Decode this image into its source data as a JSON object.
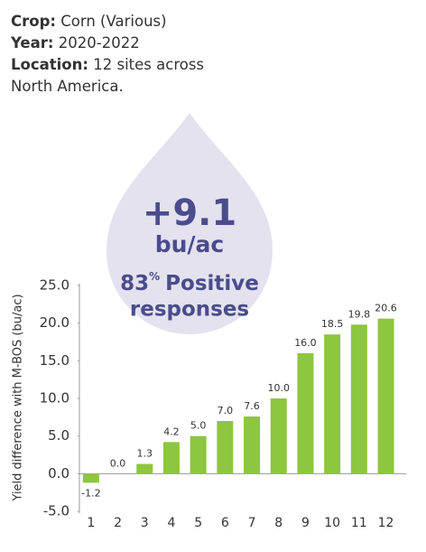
{
  "info": [
    {
      "label": "Crop:",
      "value": "Corn (Various)"
    },
    {
      "label": "Year:",
      "value": "2020-2022"
    },
    {
      "label": "Location:",
      "value": "12 sites across North America."
    }
  ],
  "callout": {
    "value": "+9.1",
    "unit": "bu/ac",
    "percent": "83",
    "percent_sign": "%",
    "lines": [
      "Positive",
      "responses"
    ]
  },
  "chart_data": {
    "type": "bar",
    "y_label": "Yield difference with M-BOS (bu/ac)",
    "categories": [
      "1",
      "2",
      "3",
      "4",
      "5",
      "6",
      "7",
      "8",
      "9",
      "10",
      "11",
      "12"
    ],
    "values": [
      -1.2,
      0.0,
      1.3,
      4.2,
      5.0,
      7.0,
      7.6,
      10.0,
      16.0,
      18.5,
      19.8,
      20.6
    ],
    "value_labels": [
      "-1.2",
      "0.0",
      "1.3",
      "4.2",
      "5.0",
      "7.0",
      "7.6",
      "10.0",
      "16.0",
      "18.5",
      "19.8",
      "20.6"
    ],
    "color": "#8dc63f",
    "ylim": [
      -5,
      25
    ],
    "yticks": [
      {
        "value": 25,
        "label": "25.0"
      },
      {
        "value": 20,
        "label": "20.0"
      },
      {
        "value": 15,
        "label": "15.0"
      },
      {
        "value": 10,
        "label": "10.0"
      },
      {
        "value": 5,
        "label": "5.0"
      },
      {
        "value": 0,
        "label": "0.0"
      },
      {
        "value": -5,
        "label": "-5.0"
      }
    ],
    "grid": false
  }
}
